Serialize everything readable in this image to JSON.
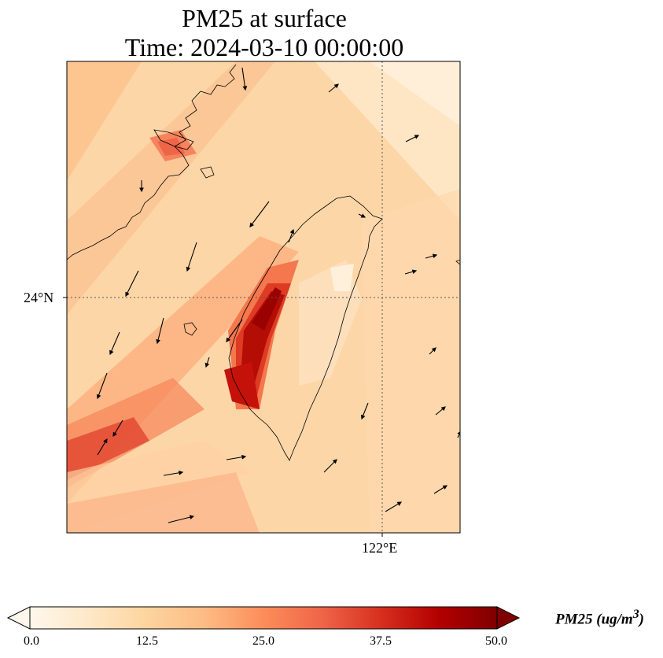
{
  "title": {
    "line1": "PM25 at surface",
    "line2": "Time: 2024-03-10 00:00:00"
  },
  "axes": {
    "lat_label": "24°N",
    "lon_label": "122°E"
  },
  "colorbar": {
    "label_main": "PM25 (ug/m",
    "label_sup": "3",
    "label_end": ")",
    "ticks": [
      "0.0",
      "12.5",
      "25.0",
      "37.5",
      "50.0"
    ],
    "min": 0,
    "max": 50,
    "colormap": "OrRd",
    "extend": "both"
  },
  "colors": {
    "low": "#fff7ec",
    "mid": "#fc8d59",
    "high": "#7f0000",
    "coastline": "#000000",
    "gridline": "#555555"
  }
}
